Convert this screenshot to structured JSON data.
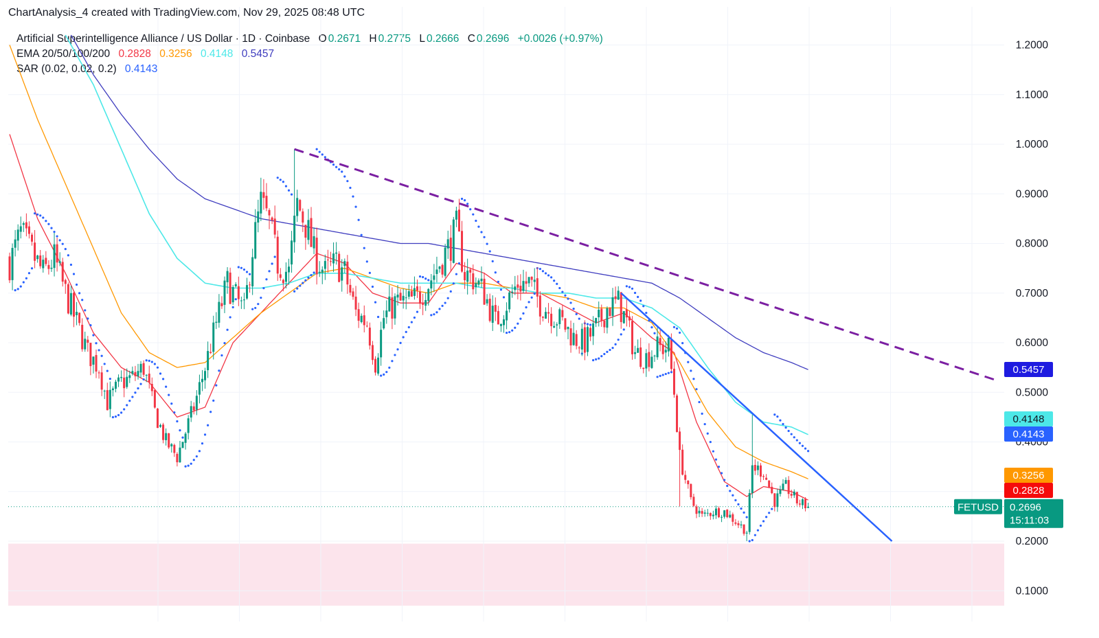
{
  "header": {
    "attribution": "ChartAnalysis_4 created with TradingView.com, Nov 29, 2025 08:48 UTC"
  },
  "legend": {
    "instrument": "Artificial Superintelligence Alliance / US Dollar · 1D · Coinbase",
    "open_label": "O",
    "open": "0.2671",
    "high_label": "H",
    "high": "0.2775",
    "low_label": "L",
    "low": "0.2666",
    "close_label": "C",
    "close": "0.2696",
    "change": "+0.0026 (+0.97%)",
    "ema_label": "EMA 20/50/100/200",
    "ema20": "0.2828",
    "ema50": "0.3256",
    "ema100": "0.4148",
    "ema200": "0.5457",
    "sar_label": "SAR (0.02, 0.02, 0.2)",
    "sar": "0.4143"
  },
  "colors": {
    "up": "#089981",
    "down": "#F23645",
    "ema20": "#F23645",
    "ema50": "#FF9800",
    "ema100": "#4DE8E8",
    "ema200": "#3F3DBF",
    "sar": "#2962FF",
    "trend_dashed": "#7B1FA2",
    "trend_solid": "#2962FF",
    "support_zone": "#FCE4EC"
  },
  "chart_data": {
    "type": "candlestick",
    "symbol": "FETUSD",
    "countdown": "15:11:03",
    "y_axis": {
      "range": [
        0.04,
        1.25
      ],
      "ticks": [
        "1.2000",
        "1.1000",
        "1.0000",
        "0.9000",
        "0.8000",
        "0.7000",
        "0.6000",
        "0.5000",
        "0.4000",
        "0.3000",
        "0.2000",
        "0.1000"
      ]
    },
    "last_price": "0.2696",
    "badges": [
      {
        "series": "EMA 200",
        "value": "0.5457",
        "color": "#2962FF"
      },
      {
        "series": "EMA 100",
        "value": "0.4148",
        "color": "#4DE8E8"
      },
      {
        "series": "SAR",
        "value": "0.4143",
        "color": "#2962FF"
      },
      {
        "series": "EMA 50",
        "value": "0.3256",
        "color": "#FF9800"
      },
      {
        "series": "EMA 20",
        "value": "0.2828",
        "color": "#F23645"
      }
    ],
    "anchors": [
      [
        0,
        0.76
      ],
      [
        4,
        0.82
      ],
      [
        8,
        0.78
      ],
      [
        12,
        0.74
      ],
      [
        16,
        0.77
      ],
      [
        20,
        0.7
      ],
      [
        24,
        0.64
      ],
      [
        28,
        0.58
      ],
      [
        32,
        0.55
      ],
      [
        35,
        0.48
      ],
      [
        40,
        0.52
      ],
      [
        44,
        0.53
      ],
      [
        48,
        0.55
      ],
      [
        52,
        0.46
      ],
      [
        56,
        0.4
      ],
      [
        60,
        0.37
      ],
      [
        63,
        0.42
      ],
      [
        66,
        0.47
      ],
      [
        70,
        0.55
      ],
      [
        74,
        0.64
      ],
      [
        78,
        0.72
      ],
      [
        80,
        0.7
      ],
      [
        84,
        0.66
      ],
      [
        87,
        0.79
      ],
      [
        90,
        0.88
      ],
      [
        93,
        0.84
      ],
      [
        96,
        0.76
      ],
      [
        100,
        0.74
      ],
      [
        103,
        0.88
      ],
      [
        106,
        0.84
      ],
      [
        109,
        0.78
      ],
      [
        113,
        0.74
      ],
      [
        117,
        0.76
      ],
      [
        120,
        0.74
      ],
      [
        124,
        0.66
      ],
      [
        128,
        0.64
      ],
      [
        131,
        0.56
      ],
      [
        134,
        0.65
      ],
      [
        138,
        0.68
      ],
      [
        142,
        0.68
      ],
      [
        146,
        0.69
      ],
      [
        150,
        0.72
      ],
      [
        154,
        0.76
      ],
      [
        158,
        0.8
      ],
      [
        160,
        0.83
      ],
      [
        163,
        0.74
      ],
      [
        166,
        0.73
      ],
      [
        170,
        0.7
      ],
      [
        174,
        0.64
      ],
      [
        178,
        0.68
      ],
      [
        182,
        0.72
      ],
      [
        186,
        0.72
      ],
      [
        190,
        0.68
      ],
      [
        194,
        0.66
      ],
      [
        198,
        0.64
      ],
      [
        202,
        0.61
      ],
      [
        206,
        0.6
      ],
      [
        210,
        0.63
      ],
      [
        214,
        0.67
      ],
      [
        218,
        0.68
      ],
      [
        221,
        0.64
      ],
      [
        224,
        0.58
      ],
      [
        228,
        0.57
      ],
      [
        232,
        0.59
      ],
      [
        236,
        0.59
      ],
      [
        238,
        0.5
      ],
      [
        240,
        0.37
      ],
      [
        244,
        0.28
      ],
      [
        248,
        0.25
      ],
      [
        252,
        0.26
      ],
      [
        256,
        0.26
      ],
      [
        260,
        0.24
      ],
      [
        264,
        0.22
      ],
      [
        266,
        0.35
      ],
      [
        270,
        0.34
      ],
      [
        274,
        0.28
      ],
      [
        278,
        0.31
      ],
      [
        282,
        0.28
      ],
      [
        286,
        0.2696
      ]
    ],
    "ema_anchors": {
      "ema20": [
        [
          0,
          1.02
        ],
        [
          10,
          0.85
        ],
        [
          20,
          0.74
        ],
        [
          30,
          0.62
        ],
        [
          40,
          0.55
        ],
        [
          50,
          0.52
        ],
        [
          60,
          0.45
        ],
        [
          70,
          0.47
        ],
        [
          80,
          0.6
        ],
        [
          90,
          0.66
        ],
        [
          100,
          0.72
        ],
        [
          110,
          0.78
        ],
        [
          120,
          0.76
        ],
        [
          130,
          0.7
        ],
        [
          140,
          0.68
        ],
        [
          150,
          0.68
        ],
        [
          160,
          0.76
        ],
        [
          170,
          0.74
        ],
        [
          180,
          0.7
        ],
        [
          190,
          0.7
        ],
        [
          200,
          0.67
        ],
        [
          210,
          0.64
        ],
        [
          220,
          0.66
        ],
        [
          230,
          0.61
        ],
        [
          238,
          0.58
        ],
        [
          246,
          0.44
        ],
        [
          256,
          0.32
        ],
        [
          264,
          0.29
        ],
        [
          270,
          0.31
        ],
        [
          280,
          0.3
        ],
        [
          286,
          0.2828
        ]
      ],
      "ema50": [
        [
          0,
          1.2
        ],
        [
          10,
          1.05
        ],
        [
          20,
          0.92
        ],
        [
          30,
          0.79
        ],
        [
          40,
          0.66
        ],
        [
          50,
          0.58
        ],
        [
          60,
          0.55
        ],
        [
          70,
          0.56
        ],
        [
          80,
          0.61
        ],
        [
          90,
          0.66
        ],
        [
          100,
          0.7
        ],
        [
          110,
          0.74
        ],
        [
          120,
          0.75
        ],
        [
          130,
          0.73
        ],
        [
          140,
          0.71
        ],
        [
          150,
          0.7
        ],
        [
          160,
          0.72
        ],
        [
          170,
          0.72
        ],
        [
          180,
          0.71
        ],
        [
          190,
          0.7
        ],
        [
          200,
          0.69
        ],
        [
          210,
          0.67
        ],
        [
          220,
          0.67
        ],
        [
          230,
          0.64
        ],
        [
          240,
          0.56
        ],
        [
          250,
          0.46
        ],
        [
          260,
          0.39
        ],
        [
          270,
          0.36
        ],
        [
          280,
          0.34
        ],
        [
          286,
          0.3256
        ]
      ],
      "ema100": [
        [
          20,
          1.22
        ],
        [
          30,
          1.12
        ],
        [
          40,
          0.99
        ],
        [
          50,
          0.86
        ],
        [
          60,
          0.77
        ],
        [
          70,
          0.72
        ],
        [
          80,
          0.71
        ],
        [
          90,
          0.71
        ],
        [
          100,
          0.72
        ],
        [
          110,
          0.74
        ],
        [
          120,
          0.74
        ],
        [
          130,
          0.73
        ],
        [
          140,
          0.72
        ],
        [
          150,
          0.72
        ],
        [
          160,
          0.72
        ],
        [
          170,
          0.71
        ],
        [
          180,
          0.71
        ],
        [
          190,
          0.7
        ],
        [
          200,
          0.7
        ],
        [
          210,
          0.69
        ],
        [
          220,
          0.69
        ],
        [
          230,
          0.67
        ],
        [
          240,
          0.63
        ],
        [
          250,
          0.55
        ],
        [
          260,
          0.48
        ],
        [
          270,
          0.44
        ],
        [
          280,
          0.43
        ],
        [
          286,
          0.4148
        ]
      ],
      "ema200": [
        [
          22,
          1.22
        ],
        [
          30,
          1.14
        ],
        [
          40,
          1.06
        ],
        [
          50,
          0.99
        ],
        [
          60,
          0.93
        ],
        [
          70,
          0.89
        ],
        [
          80,
          0.87
        ],
        [
          90,
          0.85
        ],
        [
          100,
          0.84
        ],
        [
          110,
          0.83
        ],
        [
          120,
          0.82
        ],
        [
          130,
          0.81
        ],
        [
          140,
          0.8
        ],
        [
          150,
          0.8
        ],
        [
          160,
          0.79
        ],
        [
          170,
          0.78
        ],
        [
          180,
          0.77
        ],
        [
          190,
          0.76
        ],
        [
          200,
          0.75
        ],
        [
          210,
          0.74
        ],
        [
          220,
          0.73
        ],
        [
          230,
          0.72
        ],
        [
          240,
          0.69
        ],
        [
          250,
          0.65
        ],
        [
          260,
          0.61
        ],
        [
          270,
          0.58
        ],
        [
          280,
          0.56
        ],
        [
          286,
          0.5457
        ]
      ]
    },
    "trendlines": [
      {
        "style": "dashed",
        "from": [
          102,
          0.99
        ],
        "to": [
          353,
          0.525
        ]
      },
      {
        "style": "solid",
        "from": [
          219,
          0.7
        ],
        "to": [
          316,
          0.2
        ]
      }
    ],
    "support_zone": [
      0.07,
      0.195
    ]
  }
}
